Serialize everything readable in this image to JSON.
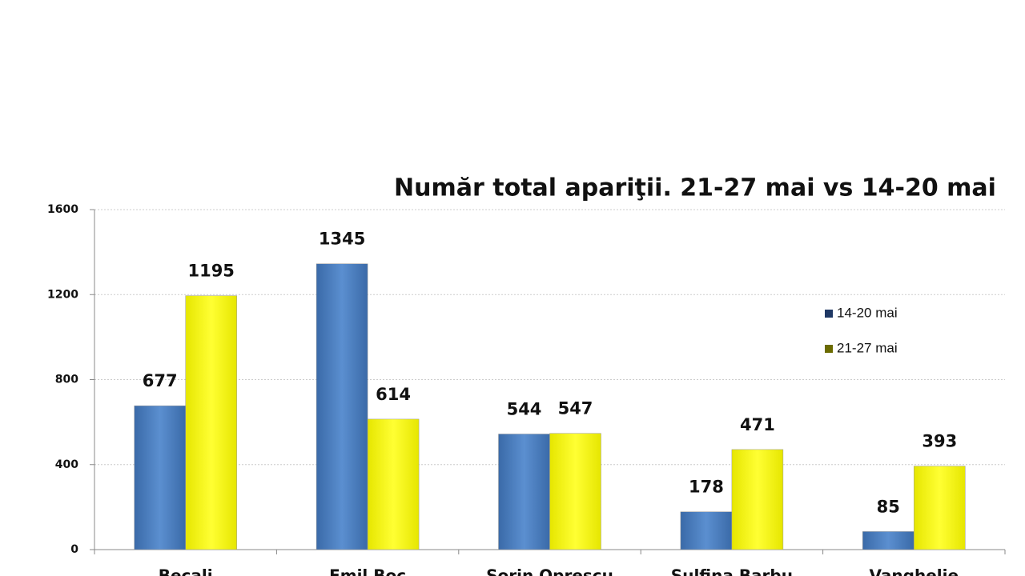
{
  "chart_data": {
    "type": "bar",
    "title": "Număr total apariţii. 21-27 mai vs 14-20 mai",
    "categories": [
      "Becali",
      "Emil Boc",
      "Sorin Oprescu",
      "Sulfina Barbu",
      "Vanghelie"
    ],
    "series": [
      {
        "name": "14-20 mai",
        "color": "#4a7ebb",
        "values": [
          677,
          1345,
          544,
          178,
          85
        ]
      },
      {
        "name": "21-27 mai",
        "color": "#ffff00",
        "values": [
          1195,
          614,
          547,
          471,
          393
        ]
      }
    ],
    "ylim": [
      0,
      1600
    ],
    "yticks": [
      0,
      400,
      800,
      1200,
      1600
    ],
    "grid": true,
    "legend": "right"
  }
}
